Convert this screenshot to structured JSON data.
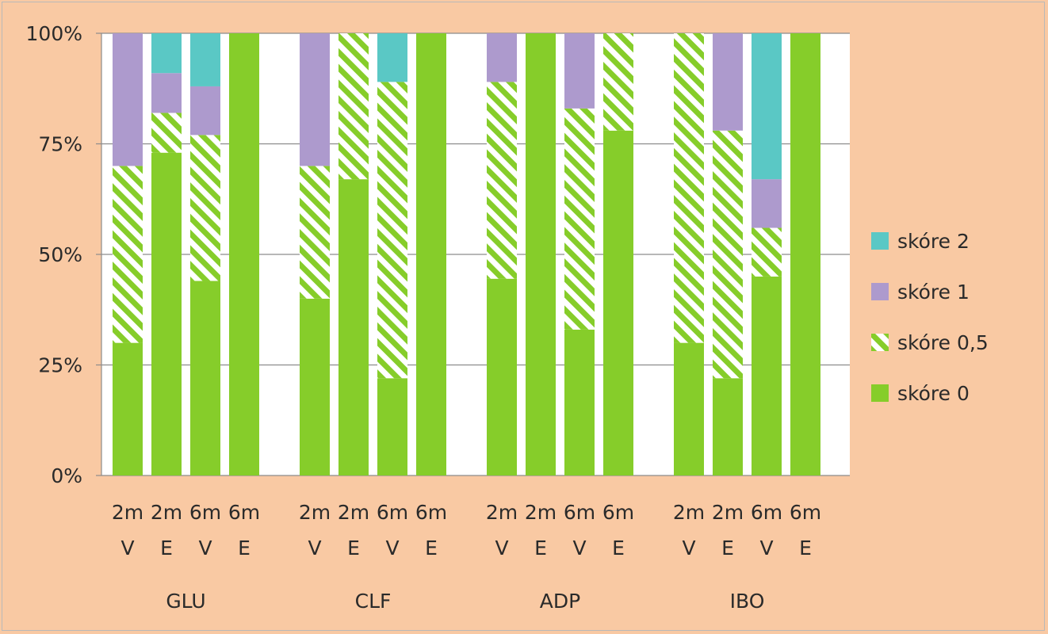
{
  "chart_data": {
    "type": "bar",
    "stacked": true,
    "percent": true,
    "title": "",
    "xlabel": "",
    "ylabel": "",
    "ylim": [
      0,
      100
    ],
    "yticks": [
      "0%",
      "25%",
      "50%",
      "75%",
      "100%"
    ],
    "grid": true,
    "legend_position": "right",
    "groups": [
      "GLU",
      "CLF",
      "ADP",
      "IBO"
    ],
    "bar_time_labels": [
      "2m",
      "2m",
      "6m",
      "6m"
    ],
    "bar_type_labels": [
      "V",
      "E",
      "V",
      "E"
    ],
    "series": [
      {
        "name": "skóre 0",
        "color": "#86cd2a",
        "pattern": "solid",
        "values": [
          30,
          73,
          44,
          100,
          40,
          67,
          22,
          100,
          44.5,
          100,
          33,
          78,
          30,
          22,
          45,
          100
        ]
      },
      {
        "name": "skóre 0,5",
        "color": "#86cd2a",
        "pattern": "hatched",
        "values": [
          40,
          9,
          33,
          0,
          30,
          33,
          67,
          0,
          44.5,
          0,
          50,
          22,
          70,
          56,
          11,
          0
        ]
      },
      {
        "name": "skóre 1",
        "color": "#ad9acd",
        "pattern": "solid",
        "values": [
          30,
          9,
          11,
          0,
          30,
          0,
          0,
          0,
          11,
          0,
          17,
          0,
          0,
          22,
          11,
          0
        ]
      },
      {
        "name": "skóre 2",
        "color": "#5ac8c5",
        "pattern": "solid",
        "values": [
          0,
          9,
          12,
          0,
          0,
          0,
          11,
          0,
          0,
          0,
          0,
          0,
          0,
          0,
          33,
          0
        ]
      }
    ],
    "legend_order": [
      "skóre 2",
      "skóre 1",
      "skóre 0,5",
      "skóre 0"
    ]
  }
}
